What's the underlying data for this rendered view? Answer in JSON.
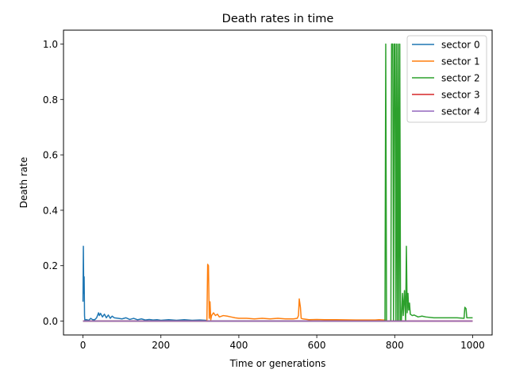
{
  "chart_data": {
    "type": "line",
    "title": "Death rates in time",
    "xlabel": "Time or generations",
    "ylabel": "Death rate",
    "xlim": [
      -50,
      1050
    ],
    "ylim": [
      -0.05,
      1.05
    ],
    "xticks": [
      0,
      200,
      400,
      600,
      800,
      1000
    ],
    "yticks": [
      0.0,
      0.2,
      0.4,
      0.6,
      0.8,
      1.0
    ],
    "xtick_labels": [
      "0",
      "200",
      "400",
      "600",
      "800",
      "1000"
    ],
    "ytick_labels": [
      "0.0",
      "0.2",
      "0.4",
      "0.6",
      "0.8",
      "1.0"
    ],
    "grid": false,
    "legend_position": "upper right",
    "series": [
      {
        "name": "sector 0",
        "color": "#1f77b4",
        "x": [
          0,
          1,
          2,
          3,
          4,
          5,
          6,
          10,
          15,
          20,
          25,
          30,
          35,
          40,
          42,
          45,
          50,
          55,
          60,
          65,
          70,
          75,
          80,
          90,
          100,
          110,
          120,
          130,
          140,
          150,
          160,
          170,
          180,
          190,
          200,
          220,
          240,
          260,
          280,
          300,
          315,
          318,
          320,
          400,
          500,
          600,
          700,
          800,
          900,
          1000
        ],
        "y": [
          0.07,
          0.27,
          0.1,
          0.16,
          0.02,
          0.0,
          0.005,
          0.005,
          0.003,
          0.01,
          0.005,
          0.005,
          0.012,
          0.03,
          0.02,
          0.028,
          0.015,
          0.025,
          0.012,
          0.022,
          0.01,
          0.018,
          0.012,
          0.01,
          0.008,
          0.012,
          0.006,
          0.01,
          0.005,
          0.008,
          0.004,
          0.006,
          0.004,
          0.005,
          0.003,
          0.005,
          0.003,
          0.005,
          0.003,
          0.004,
          0.003,
          0.0,
          0.0,
          0.0,
          0.0,
          0.0,
          0.0,
          0.0,
          0.0,
          0.0
        ]
      },
      {
        "name": "sector 1",
        "color": "#ff7f0e",
        "x": [
          0,
          300,
          318,
          320,
          322,
          324,
          326,
          328,
          330,
          335,
          340,
          345,
          350,
          360,
          370,
          380,
          390,
          400,
          420,
          440,
          460,
          480,
          500,
          520,
          540,
          550,
          553,
          555,
          558,
          560,
          565,
          580,
          600,
          620,
          650,
          700,
          750,
          760,
          770,
          775,
          780,
          800,
          900,
          1000
        ],
        "y": [
          0.0,
          0.0,
          0.0,
          0.205,
          0.2,
          0.01,
          0.07,
          0.005,
          0.02,
          0.03,
          0.02,
          0.025,
          0.015,
          0.02,
          0.018,
          0.015,
          0.012,
          0.01,
          0.01,
          0.008,
          0.01,
          0.008,
          0.01,
          0.008,
          0.008,
          0.01,
          0.02,
          0.08,
          0.05,
          0.01,
          0.008,
          0.005,
          0.006,
          0.005,
          0.005,
          0.004,
          0.004,
          0.005,
          0.004,
          0.004,
          0.0,
          0.0,
          0.0,
          0.0
        ]
      },
      {
        "name": "sector 2",
        "color": "#2ca02c",
        "x": [
          0,
          770,
          775,
          777,
          779,
          785,
          790,
          792,
          795,
          797,
          799,
          801,
          803,
          805,
          807,
          809,
          811,
          813,
          815,
          817,
          820,
          822,
          825,
          828,
          830,
          832,
          834,
          836,
          838,
          840,
          845,
          850,
          860,
          870,
          880,
          900,
          920,
          940,
          960,
          978,
          980,
          983,
          985,
          990,
          1000
        ],
        "y": [
          0.0,
          0.0,
          0.0,
          1.0,
          0.0,
          0.0,
          0.0,
          1.0,
          1.0,
          0.0,
          1.0,
          1.0,
          0.0,
          1.0,
          0.0,
          1.0,
          0.0,
          1.0,
          0.0,
          0.0,
          0.1,
          0.02,
          0.11,
          0.0,
          0.27,
          0.03,
          0.1,
          0.04,
          0.065,
          0.025,
          0.02,
          0.022,
          0.015,
          0.018,
          0.015,
          0.012,
          0.012,
          0.012,
          0.012,
          0.01,
          0.05,
          0.045,
          0.012,
          0.012,
          0.012
        ]
      },
      {
        "name": "sector 3",
        "color": "#d62728",
        "x": [
          0,
          1000
        ],
        "y": [
          0.0,
          0.0
        ]
      },
      {
        "name": "sector 4",
        "color": "#9467bd",
        "x": [
          0,
          1000
        ],
        "y": [
          0.0,
          0.0
        ]
      }
    ]
  }
}
